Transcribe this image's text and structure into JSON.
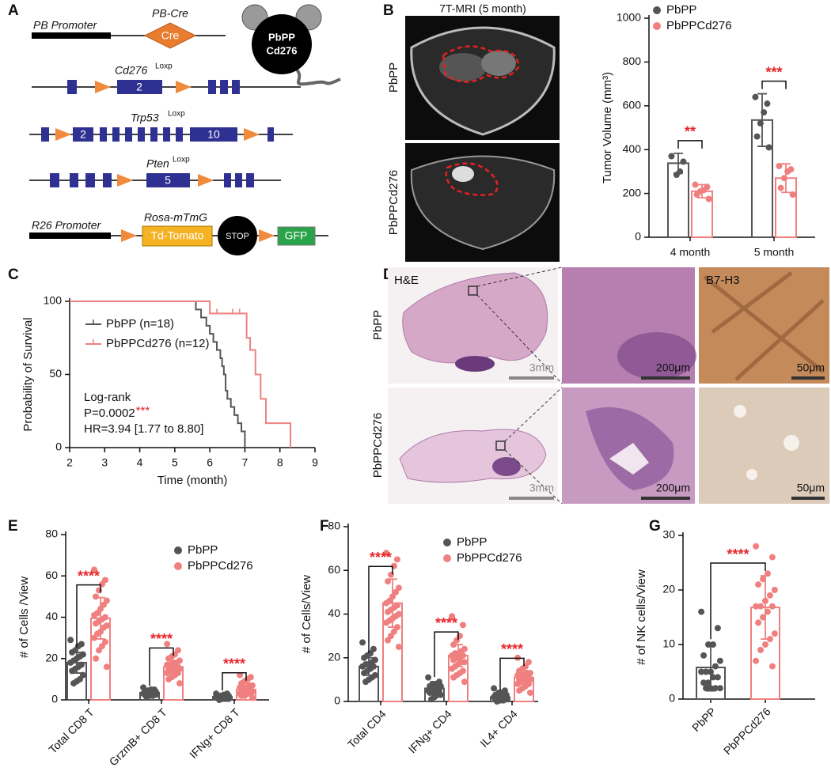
{
  "panels": [
    "A",
    "B",
    "C",
    "D",
    "E",
    "F",
    "G"
  ],
  "diagram": {
    "constructs": [
      {
        "promoter": "PB Promoter",
        "gene": "PB-Cre",
        "box": "Cre"
      },
      {
        "gene": "Cd276",
        "sup": "Loxp",
        "exons": [
          "2"
        ]
      },
      {
        "gene": "Trp53",
        "sup": "Loxp",
        "exons": [
          "2",
          "10"
        ]
      },
      {
        "gene": "Pten",
        "sup": "Loxp",
        "exons": [
          "5"
        ]
      },
      {
        "promoter": "R26 Promoter",
        "gene": "Rosa-mTmG",
        "boxes": [
          "Td-Tomato",
          "STOP",
          "GFP"
        ]
      }
    ],
    "mouse": [
      "PbPP",
      "Cd276"
    ]
  },
  "mri": {
    "title": "7T-MRI (5 month)",
    "rows": [
      "PbPP",
      "PbPPCd276"
    ]
  },
  "histology": {
    "stain_he": "H&E",
    "stain_ihc": "B7-H3",
    "rows": [
      "PbPP",
      "PbPPCd276"
    ],
    "scale_bars": [
      [
        "3mm",
        "200μm",
        "50μm"
      ],
      [
        "3mm",
        "200μm",
        "50μm"
      ]
    ]
  },
  "chart_data": [
    {
      "type": "bar",
      "ylabel": "Tumor Volume (mm³)",
      "categories": [
        "4 month",
        "5 month"
      ],
      "ylim": [
        0,
        1000
      ],
      "yticks": [
        0,
        200,
        400,
        600,
        800,
        1000
      ],
      "legend": "upper left",
      "significance": [
        "**",
        "***"
      ],
      "significance_color": "#e8262b",
      "series": [
        {
          "name": "PbPP",
          "color": "#555555",
          "values": [
            338,
            535
          ],
          "errors": [
            45,
            120
          ],
          "points": [
            [
              370,
              345,
              300,
              285
            ],
            [
              640,
              610,
              570,
              520,
              460,
              410
            ]
          ]
        },
        {
          "name": "PbPPCd276",
          "color": "#f08080",
          "values": [
            210,
            270
          ],
          "errors": [
            30,
            65
          ],
          "points": [
            [
              240,
              230,
              215,
              210,
              195,
              175
            ],
            [
              325,
              310,
              300,
              270,
              225,
              195
            ]
          ]
        }
      ]
    },
    {
      "type": "line",
      "drawstyle": "steps-post",
      "ylabel": "Probability of Survival",
      "xlabel": "Time (month)",
      "xlim": [
        2,
        9
      ],
      "xticks": [
        2,
        3,
        4,
        5,
        6,
        7,
        8,
        9
      ],
      "ylim": [
        0,
        100
      ],
      "yticks": [
        0,
        50,
        100
      ],
      "test": "Log-rank",
      "p": "P=0.0002",
      "p_stars": "***",
      "hr": "HR=3.94 [1.77 to 8.80]",
      "p_stars_color": "#e8262b",
      "series": [
        {
          "name": "PbPP (n=18)",
          "color": "#555555",
          "x": [
            2,
            5.6,
            5.75,
            5.9,
            6.0,
            6.1,
            6.2,
            6.3,
            6.35,
            6.4,
            6.45,
            6.5,
            6.6,
            6.7,
            6.8,
            6.9,
            7.0
          ],
          "values": [
            100,
            94.4,
            88.9,
            83.3,
            77.8,
            72.2,
            66.7,
            61.1,
            55.6,
            50,
            38.9,
            33.3,
            27.8,
            22.2,
            16.7,
            11.1,
            0
          ]
        },
        {
          "name": "PbPPCd276 (n=12)",
          "color": "#f08080",
          "x": [
            2,
            6.0,
            7.05,
            7.15,
            7.3,
            7.45,
            7.6,
            8.3
          ],
          "values": [
            100,
            91.7,
            75,
            66.7,
            50,
            33.3,
            16.7,
            0
          ],
          "censored_x": [
            6.2,
            6.65,
            6.85
          ]
        }
      ]
    },
    {
      "type": "bar",
      "ylabel": "# of Cells /View",
      "categories": [
        "Total CD8 T",
        "GrzmB+ CD8 T",
        "IFNg+ CD8 T"
      ],
      "ylim": [
        0,
        80
      ],
      "yticks": [
        0,
        20,
        40,
        60,
        80
      ],
      "legend": "upper right",
      "significance": [
        "****",
        "****",
        "****"
      ],
      "significance_color": "#e8262b",
      "series": [
        {
          "name": "PbPP",
          "color": "#555555",
          "values": [
            18,
            3.5,
            1.5
          ],
          "errors": [
            5,
            1,
            0.8
          ],
          "points": [
            [
              29,
              27,
              26,
              24,
              23,
              22,
              21,
              20,
              19,
              18,
              17,
              16,
              15,
              14,
              12,
              10,
              9,
              8
            ],
            [
              6,
              5,
              5,
              4.5,
              4,
              4,
              4,
              3.5,
              3.5,
              3,
              3,
              3,
              3,
              2.5,
              2.5,
              2,
              2,
              1.5
            ],
            [
              3,
              3,
              2.5,
              2,
              2,
              2,
              2,
              1.5,
              1.5,
              1.5,
              1,
              1,
              1,
              1,
              0.5,
              0.5,
              0.5,
              0
            ]
          ]
        },
        {
          "name": "PbPPCd276",
          "color": "#f08080",
          "values": [
            39.5,
            16,
            5
          ],
          "errors": [
            10,
            3,
            2
          ],
          "points": [
            [
              63,
              58,
              56,
              53,
              50,
              48,
              46,
              44,
              42,
              41,
              40,
              39,
              38,
              37,
              36,
              35,
              33,
              32,
              30,
              28,
              26,
              24,
              20,
              16
            ],
            [
              27,
              24,
              22,
              21,
              20,
              19,
              18,
              18,
              17,
              17,
              16,
              16,
              16,
              15,
              15,
              15,
              14,
              14,
              13,
              13,
              12,
              11,
              10,
              8
            ],
            [
              12,
              11,
              10,
              9,
              8,
              7,
              7,
              6,
              6,
              6,
              5,
              5,
              5,
              5,
              4,
              4,
              4,
              4,
              3,
              3,
              3,
              2,
              2,
              1
            ]
          ]
        }
      ]
    },
    {
      "type": "bar",
      "ylabel": "# of Cells/View",
      "categories": [
        "Total CD4",
        "IFNg+ CD4",
        "IL4+ CD4"
      ],
      "ylim": [
        0,
        80
      ],
      "yticks": [
        0,
        20,
        40,
        60,
        80
      ],
      "legend": "upper right",
      "significance": [
        "****",
        "****",
        "****"
      ],
      "significance_color": "#e8262b",
      "series": [
        {
          "name": "PbPP",
          "color": "#555555",
          "values": [
            16,
            6,
            2
          ],
          "errors": [
            4,
            3,
            1
          ],
          "points": [
            [
              27,
              24,
              22,
              21,
              20,
              19,
              18,
              17,
              17,
              16,
              16,
              15,
              14,
              13,
              12,
              11,
              10,
              9
            ],
            [
              11,
              9,
              8,
              8,
              7,
              7,
              6,
              6,
              6,
              5,
              5,
              5,
              4,
              4,
              3,
              3,
              2,
              1
            ],
            [
              6,
              5,
              4,
              4,
              3,
              3,
              3,
              2,
              2,
              2,
              2,
              1,
              1,
              1,
              1,
              0.5,
              0.5,
              0
            ]
          ]
        },
        {
          "name": "PbPPCd276",
          "color": "#f08080",
          "values": [
            45,
            21,
            11
          ],
          "errors": [
            11,
            5,
            3
          ],
          "points": [
            [
              68,
              65,
              62,
              58,
              55,
              52,
              50,
              48,
              46,
              45,
              44,
              43,
              42,
              41,
              40,
              39,
              38,
              37,
              36,
              34,
              32,
              30,
              28,
              25
            ],
            [
              39,
              35,
              30,
              28,
              26,
              24,
              23,
              22,
              22,
              21,
              21,
              20,
              20,
              19,
              18,
              18,
              17,
              16,
              15,
              14,
              13,
              12,
              11,
              9
            ],
            [
              20,
              18,
              16,
              15,
              14,
              13,
              13,
              12,
              12,
              12,
              11,
              11,
              11,
              10,
              10,
              10,
              9,
              9,
              8,
              8,
              7,
              6,
              5,
              4
            ]
          ]
        }
      ]
    },
    {
      "type": "bar",
      "ylabel": "# of NK cells/View",
      "categories": [
        "PbPP",
        "PbPPCd276"
      ],
      "ylim": [
        0,
        30
      ],
      "yticks": [
        0,
        10,
        20,
        30
      ],
      "significance": "****",
      "significance_color": "#e8262b",
      "series": [
        {
          "colors": [
            "#555555",
            "#f08080"
          ],
          "values": [
            5.8,
            16.8
          ],
          "errors": [
            4.3,
            5.8
          ],
          "points": [
            [
              16,
              13,
              10,
              10,
              8,
              7,
              6,
              5,
              5,
              5,
              4,
              4,
              3,
              3,
              2,
              2,
              2,
              2
            ],
            [
              28,
              26,
              23,
              22,
              21,
              20,
              19,
              18,
              17,
              17,
              17,
              16,
              15,
              14,
              12,
              11,
              10,
              9,
              7,
              6
            ]
          ]
        }
      ]
    }
  ]
}
